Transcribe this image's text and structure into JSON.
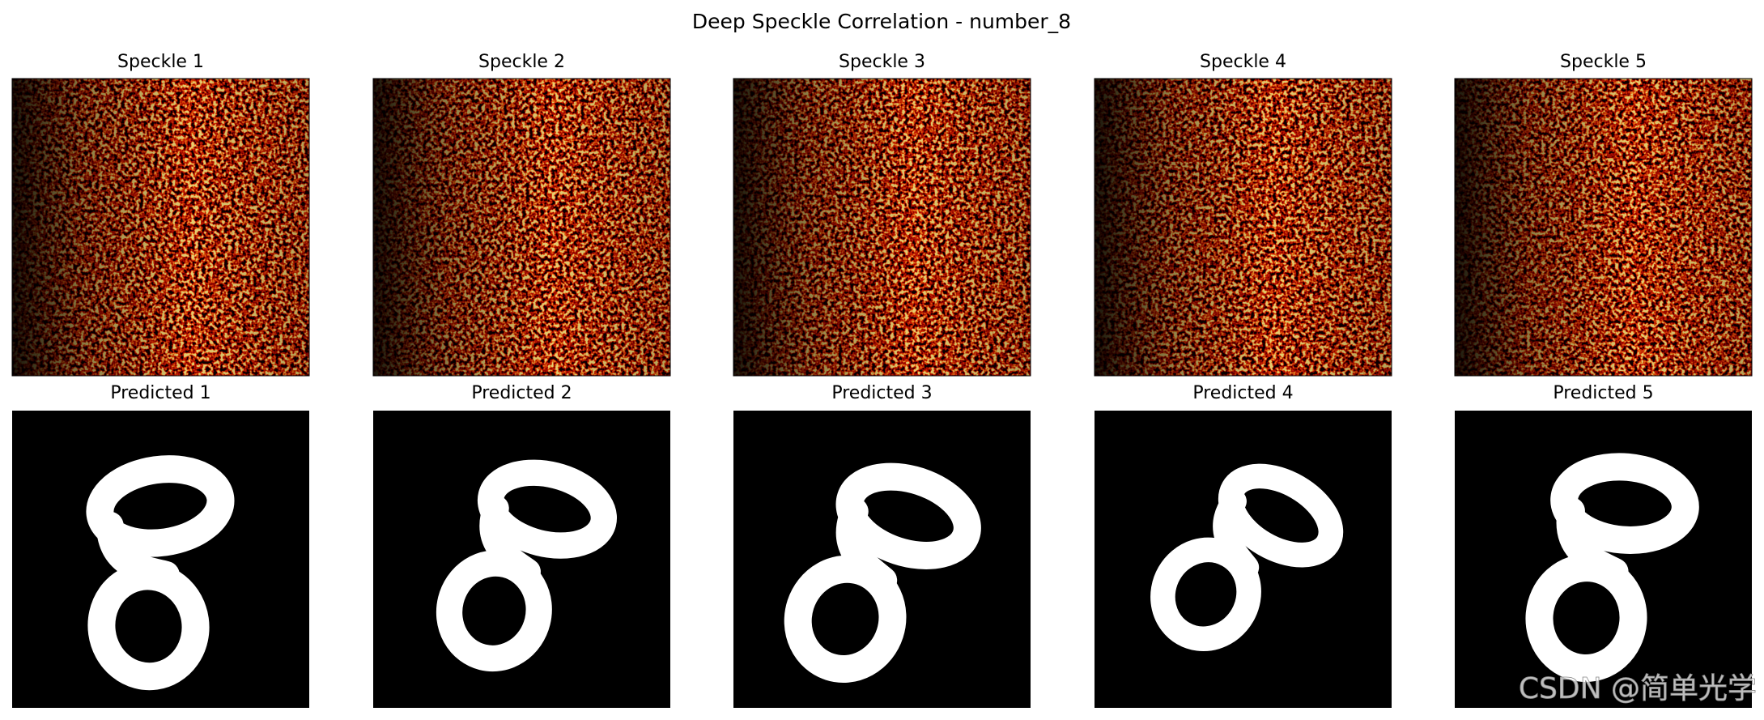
{
  "title": "Deep Speckle Correlation - number_8",
  "speckles": [
    "Speckle 1",
    "Speckle 2",
    "Speckle 3",
    "Speckle 4",
    "Speckle 5"
  ],
  "predictions": [
    "Predicted 1",
    "Predicted 2",
    "Predicted 3",
    "Predicted 4",
    "Predicted 5"
  ],
  "watermark": "CSDN @简单光学"
}
